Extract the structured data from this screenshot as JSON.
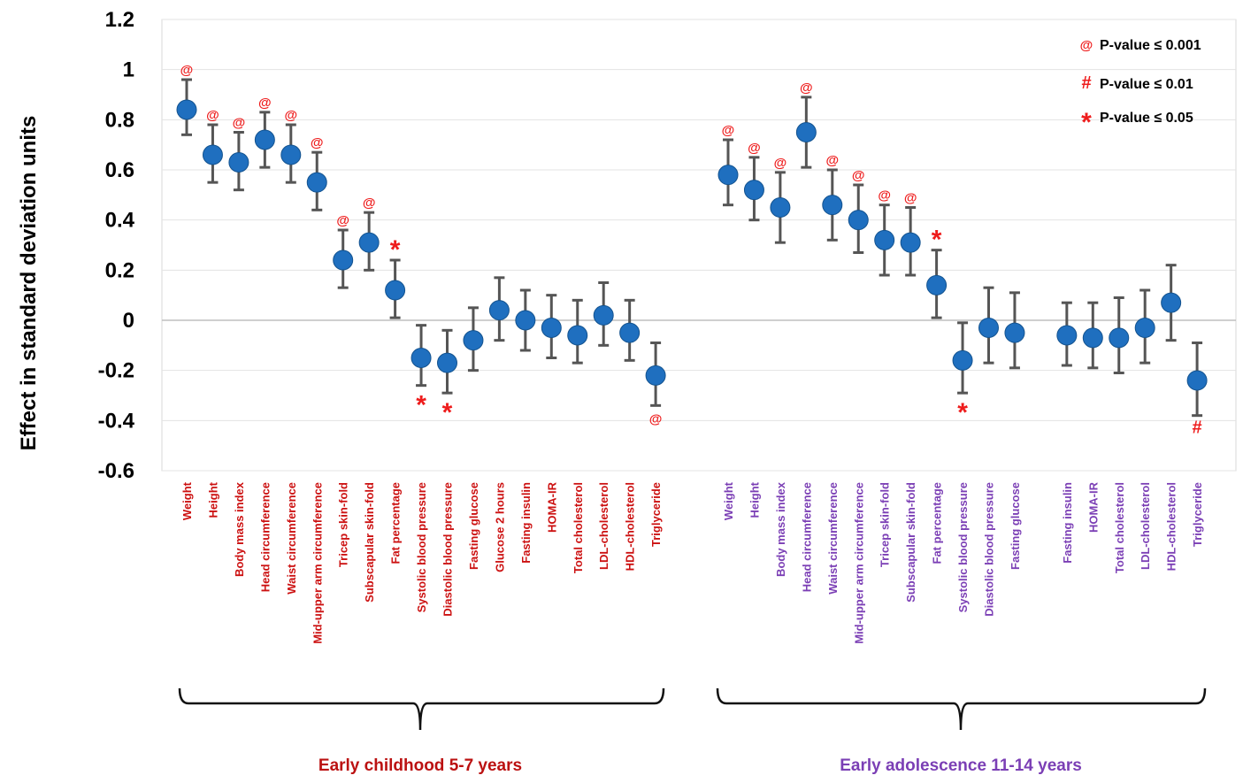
{
  "chart_data": {
    "type": "scatter",
    "ylabel": "Effect in standard deviation units",
    "ylim": [
      -0.6,
      1.2
    ],
    "yticks": [
      "1.2",
      "1",
      "0.8",
      "0.6",
      "0.4",
      "0.2",
      "0",
      "-0.2",
      "-0.4",
      "-0.6"
    ],
    "ytick_values": [
      1.2,
      1.0,
      0.8,
      0.6,
      0.4,
      0.2,
      0.0,
      -0.2,
      -0.4,
      -0.6
    ],
    "grid": true,
    "legend_position": "top-right",
    "legend": [
      {
        "symbol": "@",
        "label": "P-value ≤ 0.001"
      },
      {
        "symbol": "#",
        "label": "P-value ≤ 0.01"
      },
      {
        "symbol": "*",
        "label": "P-value ≤ 0.05"
      }
    ],
    "colors": {
      "point": "#1f6fbf",
      "error_bar": "#555555",
      "significance": "#ee1c1c",
      "childhood_label": "#cc1111",
      "adolescence_label": "#7b3fb5",
      "childhood_group": "#bb1111",
      "adolescence_group": "#7b3fb5"
    },
    "groups": [
      {
        "name": "Early childhood 5-7 years",
        "points": [
          {
            "label": "Weight",
            "value": 0.84,
            "lower": 0.74,
            "upper": 0.96,
            "sig": "@"
          },
          {
            "label": "Height",
            "value": 0.66,
            "lower": 0.55,
            "upper": 0.78,
            "sig": "@"
          },
          {
            "label": "Body mass index",
            "value": 0.63,
            "lower": 0.52,
            "upper": 0.75,
            "sig": "@"
          },
          {
            "label": "Head circumference",
            "value": 0.72,
            "lower": 0.61,
            "upper": 0.83,
            "sig": "@"
          },
          {
            "label": "Waist circumference",
            "value": 0.66,
            "lower": 0.55,
            "upper": 0.78,
            "sig": "@"
          },
          {
            "label": "Mid-upper arm circumference",
            "value": 0.55,
            "lower": 0.44,
            "upper": 0.67,
            "sig": "@"
          },
          {
            "label": "Tricep skin-fold",
            "value": 0.24,
            "lower": 0.13,
            "upper": 0.36,
            "sig": "@"
          },
          {
            "label": "Subscapular skin-fold",
            "value": 0.31,
            "lower": 0.2,
            "upper": 0.43,
            "sig": "@"
          },
          {
            "label": "Fat percentage",
            "value": 0.12,
            "lower": 0.01,
            "upper": 0.24,
            "sig": "*"
          },
          {
            "label": "Systolic blood pressure",
            "value": -0.15,
            "lower": -0.26,
            "upper": -0.02,
            "sig": "*"
          },
          {
            "label": "Diastolic blood pressure",
            "value": -0.17,
            "lower": -0.29,
            "upper": -0.04,
            "sig": "*"
          },
          {
            "label": "Fasting glucose",
            "value": -0.08,
            "lower": -0.2,
            "upper": 0.05,
            "sig": ""
          },
          {
            "label": "Glucose 2 hours",
            "value": 0.04,
            "lower": -0.08,
            "upper": 0.17,
            "sig": ""
          },
          {
            "label": "Fasting insulin",
            "value": 0.0,
            "lower": -0.12,
            "upper": 0.12,
            "sig": ""
          },
          {
            "label": "HOMA-IR",
            "value": -0.03,
            "lower": -0.15,
            "upper": 0.1,
            "sig": ""
          },
          {
            "label": "Total cholesterol",
            "value": -0.06,
            "lower": -0.17,
            "upper": 0.08,
            "sig": ""
          },
          {
            "label": "LDL-cholesterol",
            "value": 0.02,
            "lower": -0.1,
            "upper": 0.15,
            "sig": ""
          },
          {
            "label": "HDL-cholesterol",
            "value": -0.05,
            "lower": -0.16,
            "upper": 0.08,
            "sig": ""
          },
          {
            "label": "Triglyceride",
            "value": -0.22,
            "lower": -0.34,
            "upper": -0.09,
            "sig": "@"
          }
        ]
      },
      {
        "name": "Early adolescence 11-14 years",
        "points": [
          {
            "label": "Weight",
            "value": 0.58,
            "lower": 0.46,
            "upper": 0.72,
            "sig": "@"
          },
          {
            "label": "Height",
            "value": 0.52,
            "lower": 0.4,
            "upper": 0.65,
            "sig": "@"
          },
          {
            "label": "Body mass index",
            "value": 0.45,
            "lower": 0.31,
            "upper": 0.59,
            "sig": "@"
          },
          {
            "label": "Head circumference",
            "value": 0.75,
            "lower": 0.61,
            "upper": 0.89,
            "sig": "@"
          },
          {
            "label": "Waist circumference",
            "value": 0.46,
            "lower": 0.32,
            "upper": 0.6,
            "sig": "@"
          },
          {
            "label": "Mid-upper arm circumference",
            "value": 0.4,
            "lower": 0.27,
            "upper": 0.54,
            "sig": "@"
          },
          {
            "label": "Tricep skin-fold",
            "value": 0.32,
            "lower": 0.18,
            "upper": 0.46,
            "sig": "@"
          },
          {
            "label": "Subscapular skin-fold",
            "value": 0.31,
            "lower": 0.18,
            "upper": 0.45,
            "sig": "@"
          },
          {
            "label": "Fat percentage",
            "value": 0.14,
            "lower": 0.01,
            "upper": 0.28,
            "sig": "*"
          },
          {
            "label": "Systolic blood pressure",
            "value": -0.16,
            "lower": -0.29,
            "upper": -0.01,
            "sig": "*"
          },
          {
            "label": "Diastolic blood pressure",
            "value": -0.03,
            "lower": -0.17,
            "upper": 0.13,
            "sig": ""
          },
          {
            "label": "Fasting glucose",
            "value": -0.05,
            "lower": -0.19,
            "upper": 0.11,
            "sig": ""
          },
          {
            "label": "Fasting insulin",
            "value": -0.06,
            "lower": -0.18,
            "upper": 0.07,
            "sig": ""
          },
          {
            "label": "HOMA-IR",
            "value": -0.07,
            "lower": -0.19,
            "upper": 0.07,
            "sig": ""
          },
          {
            "label": "Total cholesterol",
            "value": -0.07,
            "lower": -0.21,
            "upper": 0.09,
            "sig": ""
          },
          {
            "label": "LDL-cholesterol",
            "value": -0.03,
            "lower": -0.17,
            "upper": 0.12,
            "sig": ""
          },
          {
            "label": "HDL-cholesterol",
            "value": 0.07,
            "lower": -0.08,
            "upper": 0.22,
            "sig": ""
          },
          {
            "label": "Triglyceride",
            "value": -0.24,
            "lower": -0.38,
            "upper": -0.09,
            "sig": "#"
          }
        ]
      }
    ]
  }
}
